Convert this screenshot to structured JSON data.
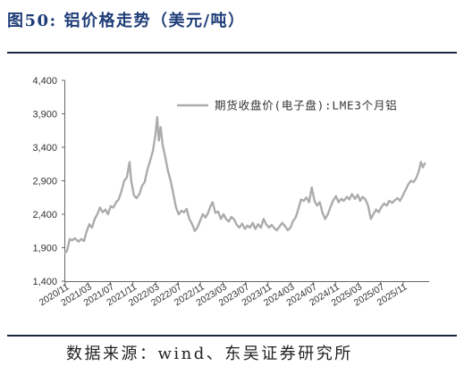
{
  "source": "数据来源：wind、东吴证券研究所",
  "colors": {
    "title": "#1e3d78",
    "rule": "#1c2540",
    "axis": "#666666",
    "series": "#acacac"
  },
  "chart_data": {
    "type": "line",
    "title": "图50: 铝价格走势（美元/吨）",
    "ylim": [
      1400,
      4400
    ],
    "yticks": [
      1400,
      1900,
      2400,
      2900,
      3400,
      3900,
      4400
    ],
    "ytick_labels": [
      "1,400",
      "1,900",
      "2,400",
      "2,900",
      "3,400",
      "3,900",
      "4,400"
    ],
    "xlim": [
      "2020-11-01",
      "2026-03-15"
    ],
    "xtick_labels": [
      "2020/11",
      "2021/03",
      "2021/07",
      "2021/11",
      "2022/03",
      "2022/07",
      "2022/11",
      "2023/03",
      "2023/07",
      "2023/11",
      "2024/03",
      "2024/07",
      "2024/11",
      "2025/03",
      "2025/07",
      "2025/11"
    ],
    "grid": false,
    "legend_position": "top-right",
    "series": [
      {
        "name": "期货收盘价(电子盘):LME3个月铝",
        "x": [
          "2020-11-01",
          "2020-11-10",
          "2020-11-25",
          "2020-12-08",
          "2020-12-23",
          "2021-01-12",
          "2021-01-27",
          "2021-02-10",
          "2021-02-24",
          "2021-03-10",
          "2021-03-24",
          "2021-04-08",
          "2021-04-22",
          "2021-05-06",
          "2021-05-21",
          "2021-06-05",
          "2021-06-19",
          "2021-07-03",
          "2021-07-18",
          "2021-08-02",
          "2021-08-16",
          "2021-09-01",
          "2021-09-15",
          "2021-09-29",
          "2021-10-14",
          "2021-10-23",
          "2021-11-07",
          "2021-11-21",
          "2021-12-06",
          "2021-12-20",
          "2022-01-04",
          "2022-01-18",
          "2022-02-03",
          "2022-02-17",
          "2022-03-02",
          "2022-03-11",
          "2022-03-20",
          "2022-03-30",
          "2022-04-09",
          "2022-04-24",
          "2022-05-08",
          "2022-05-23",
          "2022-06-07",
          "2022-06-21",
          "2022-07-05",
          "2022-07-20",
          "2022-08-04",
          "2022-08-18",
          "2022-09-02",
          "2022-09-17",
          "2022-10-01",
          "2022-10-15",
          "2022-10-30",
          "2022-11-14",
          "2022-11-28",
          "2022-12-12",
          "2022-12-27",
          "2023-01-06",
          "2023-01-21",
          "2023-02-05",
          "2023-02-19",
          "2023-03-04",
          "2023-03-18",
          "2023-04-02",
          "2023-04-16",
          "2023-05-01",
          "2023-05-15",
          "2023-05-29",
          "2023-06-13",
          "2023-06-28",
          "2023-07-12",
          "2023-07-26",
          "2023-08-10",
          "2023-08-24",
          "2023-09-09",
          "2023-09-23",
          "2023-10-08",
          "2023-10-22",
          "2023-11-06",
          "2023-11-20",
          "2023-12-05",
          "2023-12-19",
          "2024-01-03",
          "2024-01-18",
          "2024-02-02",
          "2024-02-16",
          "2024-03-01",
          "2024-03-15",
          "2024-03-29",
          "2024-04-13",
          "2024-04-27",
          "2024-05-12",
          "2024-05-26",
          "2024-06-10",
          "2024-06-24",
          "2024-07-09",
          "2024-07-23",
          "2024-08-07",
          "2024-08-21",
          "2024-09-05",
          "2024-09-20",
          "2024-10-04",
          "2024-10-18",
          "2024-11-03",
          "2024-11-17",
          "2024-12-01",
          "2024-12-15",
          "2025-01-01",
          "2025-01-15",
          "2025-01-29",
          "2025-02-13",
          "2025-02-27",
          "2025-03-12",
          "2025-03-26",
          "2025-04-10",
          "2025-04-24",
          "2025-05-09",
          "2025-05-23",
          "2025-06-07",
          "2025-06-21",
          "2025-07-06",
          "2025-07-20",
          "2025-08-04",
          "2025-08-18",
          "2025-09-03",
          "2025-09-17",
          "2025-10-01",
          "2025-10-15",
          "2025-11-01",
          "2025-11-15",
          "2025-11-29",
          "2025-12-13",
          "2025-12-27",
          "2026-01-11",
          "2026-01-26",
          "2026-02-05",
          "2026-02-15",
          "2026-02-24"
        ],
        "y": [
          1830,
          1850,
          2030,
          2010,
          2040,
          1990,
          2030,
          2000,
          2150,
          2250,
          2200,
          2330,
          2400,
          2500,
          2430,
          2470,
          2400,
          2520,
          2500,
          2580,
          2620,
          2750,
          2900,
          2950,
          3180,
          2900,
          2680,
          2640,
          2700,
          2820,
          2880,
          3050,
          3200,
          3350,
          3600,
          3850,
          3500,
          3700,
          3450,
          3250,
          3050,
          2900,
          2700,
          2500,
          2400,
          2450,
          2430,
          2480,
          2330,
          2250,
          2150,
          2200,
          2300,
          2400,
          2350,
          2420,
          2530,
          2580,
          2420,
          2440,
          2330,
          2400,
          2330,
          2290,
          2360,
          2320,
          2240,
          2200,
          2260,
          2180,
          2230,
          2200,
          2270,
          2180,
          2250,
          2200,
          2330,
          2250,
          2200,
          2240,
          2190,
          2160,
          2220,
          2270,
          2220,
          2160,
          2200,
          2300,
          2350,
          2480,
          2620,
          2600,
          2650,
          2580,
          2800,
          2600,
          2530,
          2580,
          2430,
          2330,
          2400,
          2510,
          2600,
          2670,
          2580,
          2630,
          2600,
          2660,
          2620,
          2700,
          2630,
          2690,
          2600,
          2660,
          2620,
          2530,
          2330,
          2400,
          2470,
          2430,
          2510,
          2560,
          2530,
          2600,
          2570,
          2610,
          2640,
          2600,
          2690,
          2770,
          2850,
          2900,
          2880,
          2940,
          3050,
          3180,
          3100,
          3160
        ]
      }
    ]
  }
}
